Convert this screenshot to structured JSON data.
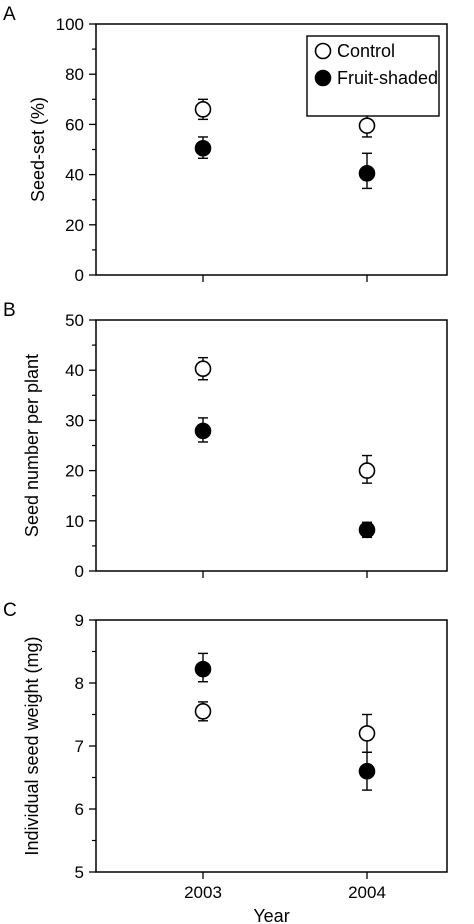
{
  "chart_data": [
    {
      "type": "scatter",
      "panel": "A",
      "ylabel": "Seed-set (%)",
      "xlabel": "",
      "ylim": [
        0,
        100
      ],
      "yticks": [
        0,
        20,
        40,
        60,
        80,
        100
      ],
      "categories": [
        "2003",
        "2004"
      ],
      "legend": {
        "placement": "top-right",
        "entries": [
          "Control",
          "Fruit-shaded"
        ]
      },
      "series": [
        {
          "name": "Control",
          "marker": "open-circle",
          "values": [
            66,
            59.5
          ],
          "err_low": [
            4,
            4.5
          ],
          "err_high": [
            4,
            5
          ]
        },
        {
          "name": "Fruit-shaded",
          "marker": "filled-circle",
          "values": [
            50.5,
            40.5
          ],
          "err_low": [
            4,
            6
          ],
          "err_high": [
            4.5,
            8
          ]
        }
      ]
    },
    {
      "type": "scatter",
      "panel": "B",
      "ylabel": "Seed number per plant",
      "xlabel": "",
      "ylim": [
        0,
        50
      ],
      "yticks": [
        0,
        10,
        20,
        30,
        40,
        50
      ],
      "categories": [
        "2003",
        "2004"
      ],
      "series": [
        {
          "name": "Control",
          "marker": "open-circle",
          "values": [
            40.3,
            20
          ],
          "err_low": [
            2.2,
            2.5
          ],
          "err_high": [
            2.2,
            3
          ]
        },
        {
          "name": "Fruit-shaded",
          "marker": "filled-circle",
          "values": [
            27.9,
            8.2
          ],
          "err_low": [
            2.2,
            1.5
          ],
          "err_high": [
            2.6,
            1.5
          ]
        }
      ]
    },
    {
      "type": "scatter",
      "panel": "C",
      "ylabel": "Individual seed weight (mg)",
      "xlabel": "Year",
      "ylim": [
        5,
        9
      ],
      "yticks": [
        5,
        6,
        7,
        8,
        9
      ],
      "categories": [
        "2003",
        "2004"
      ],
      "series": [
        {
          "name": "Control",
          "marker": "open-circle",
          "values": [
            7.55,
            7.2
          ],
          "err_low": [
            0.15,
            0.3
          ],
          "err_high": [
            0.15,
            0.3
          ]
        },
        {
          "name": "Fruit-shaded",
          "marker": "filled-circle",
          "values": [
            8.22,
            6.6
          ],
          "err_low": [
            0.2,
            0.3
          ],
          "err_high": [
            0.25,
            0.3
          ]
        }
      ]
    }
  ]
}
